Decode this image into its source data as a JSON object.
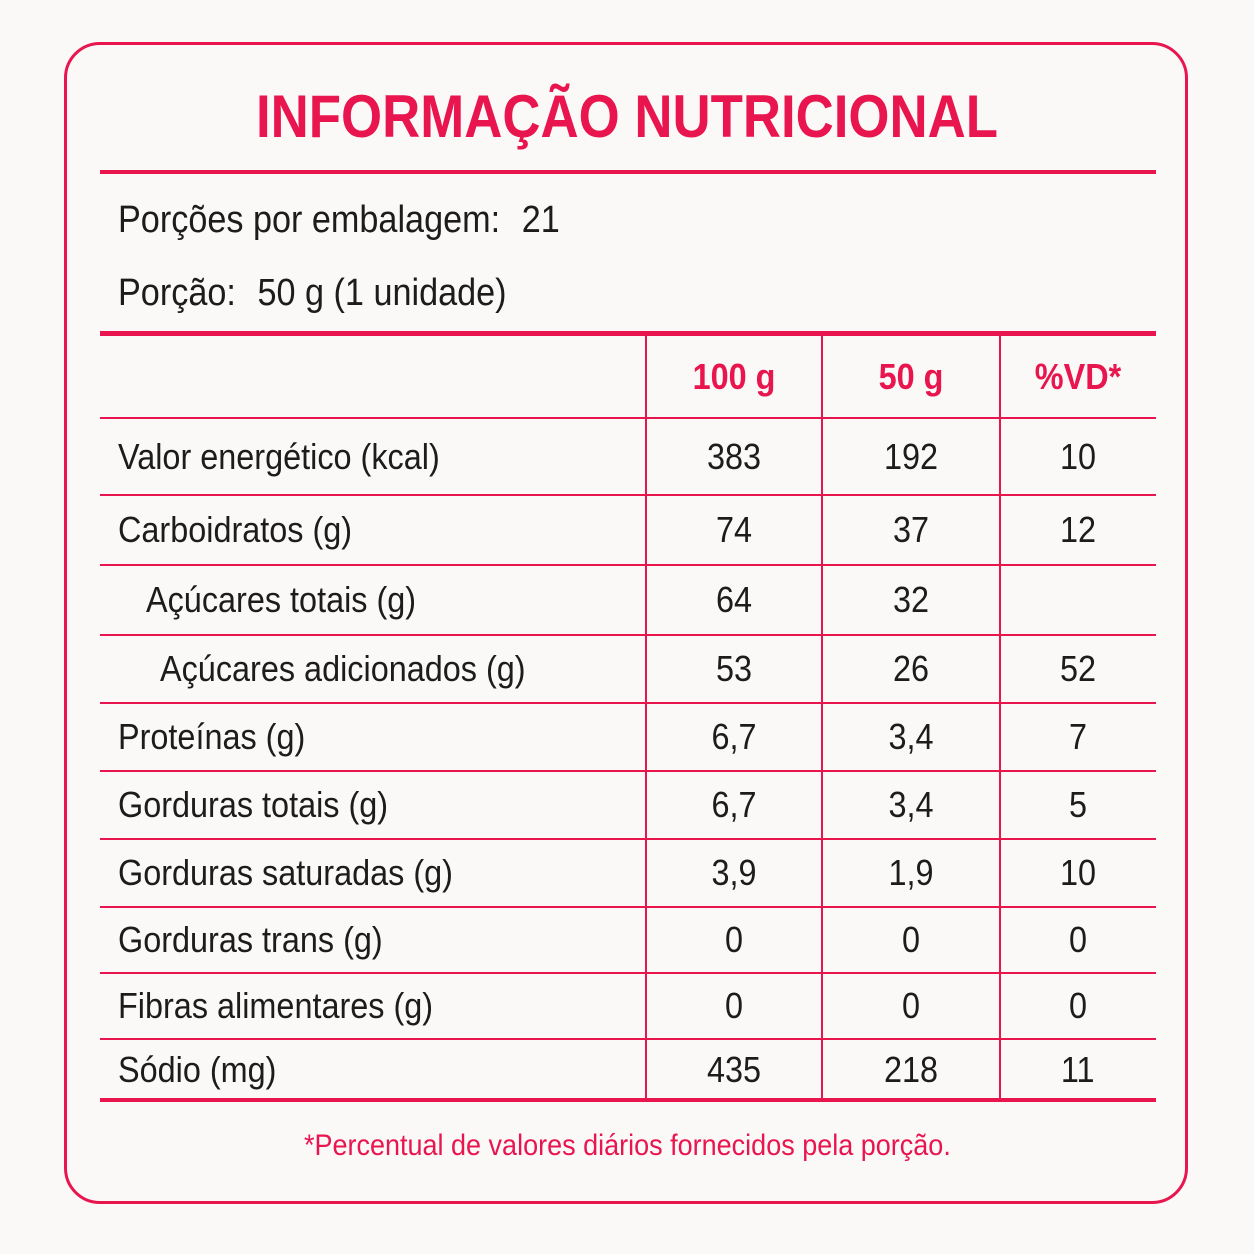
{
  "title": "INFORMAÇÃO NUTRICIONAL",
  "servings": {
    "per_package_label": "Porções por embalagem:",
    "per_package_value": "21",
    "portion_label": "Porção:",
    "portion_value": "50 g (1 unidade)"
  },
  "table": {
    "headers": [
      "",
      "100 g",
      "50 g",
      "%VD*"
    ],
    "rows": [
      {
        "label": "Valor energético (kcal)",
        "indent": 0,
        "v100": "383",
        "v50": "192",
        "vd": "10"
      },
      {
        "label": "Carboidratos (g)",
        "indent": 0,
        "v100": "74",
        "v50": "37",
        "vd": "12"
      },
      {
        "label": "Açúcares totais (g)",
        "indent": 1,
        "v100": "64",
        "v50": "32",
        "vd": ""
      },
      {
        "label": "Açúcares adicionados (g)",
        "indent": 2,
        "v100": "53",
        "v50": "26",
        "vd": "52"
      },
      {
        "label": "Proteínas (g)",
        "indent": 0,
        "v100": "6,7",
        "v50": "3,4",
        "vd": "7"
      },
      {
        "label": "Gorduras totais (g)",
        "indent": 0,
        "v100": "6,7",
        "v50": "3,4",
        "vd": "5"
      },
      {
        "label": "Gorduras saturadas (g)",
        "indent": 0,
        "v100": "3,9",
        "v50": "1,9",
        "vd": "10"
      },
      {
        "label": "Gorduras trans (g)",
        "indent": 0,
        "v100": "0",
        "v50": "0",
        "vd": "0"
      },
      {
        "label": "Fibras alimentares (g)",
        "indent": 0,
        "v100": "0",
        "v50": "0",
        "vd": "0"
      },
      {
        "label": "Sódio (mg)",
        "indent": 0,
        "v100": "435",
        "v50": "218",
        "vd": "11"
      }
    ]
  },
  "footnote": "*Percentual de valores diários fornecidos pela porção.",
  "colors": {
    "accent": "#e8154f",
    "text": "#1c1c1c",
    "background": "#fbf9f7"
  }
}
